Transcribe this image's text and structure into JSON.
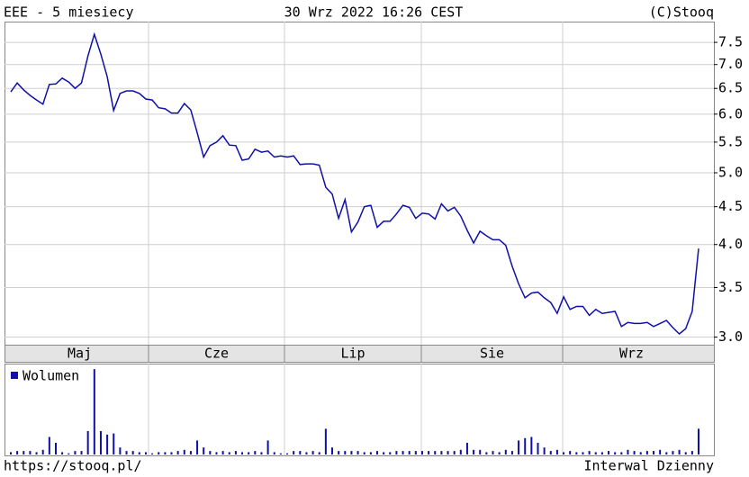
{
  "chart_data": {
    "type": "line",
    "title": "EEE - 5 miesiecy",
    "timestamp": "30 Wrz 2022 16:26 CEST",
    "source": "(C)Stooq",
    "url": "https://stooq.pl/",
    "interval": "Interwal Dzienny",
    "months": [
      "Maj",
      "Cze",
      "Lip",
      "Sie",
      "Wrz"
    ],
    "color": "#1010a8",
    "log_scale": true,
    "grid": true,
    "ylim": [
      2.93,
      8.0
    ],
    "yticks": [
      {
        "value": 3,
        "label": "3.0"
      },
      3.5,
      {
        "value": 4,
        "label": "4.0"
      },
      4.5,
      {
        "value": 5,
        "label": "5.0"
      },
      5.5,
      {
        "value": 6,
        "label": "6.0"
      },
      6.5,
      {
        "value": 7,
        "label": "7.0"
      },
      7.5
    ],
    "values": [
      6.43,
      6.61,
      6.47,
      6.36,
      6.27,
      6.19,
      6.58,
      6.59,
      6.71,
      6.63,
      6.5,
      6.61,
      7.19,
      7.69,
      7.23,
      6.74,
      6.07,
      6.4,
      6.45,
      6.45,
      6.4,
      6.29,
      6.27,
      6.12,
      6.1,
      6.02,
      6.02,
      6.2,
      6.08,
      5.66,
      5.25,
      5.44,
      5.5,
      5.61,
      5.45,
      5.44,
      5.2,
      5.22,
      5.38,
      5.33,
      5.35,
      5.25,
      5.27,
      5.25,
      5.27,
      5.13,
      5.14,
      5.14,
      5.12,
      4.78,
      4.68,
      4.34,
      4.6,
      4.16,
      4.29,
      4.5,
      4.52,
      4.22,
      4.3,
      4.3,
      4.4,
      4.52,
      4.49,
      4.34,
      4.41,
      4.4,
      4.33,
      4.54,
      4.44,
      4.49,
      4.37,
      4.18,
      4.02,
      4.17,
      4.11,
      4.06,
      4.06,
      3.99,
      3.74,
      3.54,
      3.39,
      3.44,
      3.45,
      3.39,
      3.34,
      3.23,
      3.4,
      3.27,
      3.3,
      3.3,
      3.21,
      3.27,
      3.23,
      3.24,
      3.25,
      3.1,
      3.14,
      3.13,
      3.13,
      3.14,
      3.1,
      3.13,
      3.16,
      3.09,
      3.03,
      3.08,
      3.25,
      3.95
    ],
    "volume": {
      "name": "Wolumen",
      "color": "#1010a8",
      "values": [
        2,
        3,
        3,
        3,
        2,
        4,
        15,
        10,
        2,
        1,
        3,
        3,
        20,
        73,
        20,
        17,
        18,
        6,
        3,
        3,
        2,
        2,
        1,
        2,
        2,
        2,
        3,
        4,
        3,
        12,
        6,
        3,
        2,
        3,
        2,
        3,
        2,
        2,
        3,
        2,
        12,
        2,
        1,
        1,
        3,
        3,
        2,
        3,
        2,
        22,
        6,
        3,
        3,
        3,
        3,
        2,
        2,
        3,
        2,
        2,
        3,
        3,
        3,
        3,
        3,
        3,
        3,
        3,
        3,
        3,
        4,
        10,
        4,
        4,
        2,
        3,
        2,
        4,
        3,
        12,
        14,
        15,
        10,
        6,
        3,
        4,
        2,
        3,
        2,
        2,
        3,
        2,
        2,
        3,
        2,
        2,
        4,
        3,
        2,
        3,
        3,
        4,
        2,
        3,
        4,
        2,
        3,
        22
      ]
    }
  }
}
